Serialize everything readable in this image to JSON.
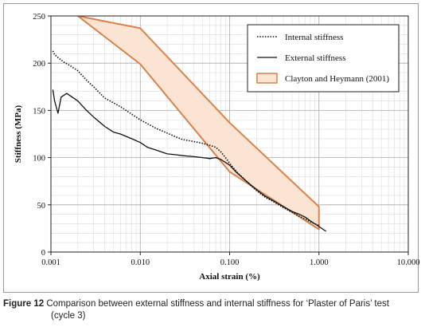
{
  "caption": {
    "label": "Figure 12",
    "text_line1": "Comparison between external stiffness and internal stiffness for ‘Plaster of Paris’ test",
    "text_line2": "(cycle 3)"
  },
  "chart_data": {
    "type": "line",
    "title": "",
    "xlabel": "Axial strain (%)",
    "ylabel": "Stiffness (MPa)",
    "x_scale": "log",
    "xlim": [
      0.001,
      10
    ],
    "ylim": [
      0,
      250
    ],
    "x_ticks": [
      0.001,
      0.01,
      0.1,
      1,
      10
    ],
    "x_tick_labels": [
      "0.001",
      "0.010",
      "0.100",
      "1.000",
      "10.000"
    ],
    "y_ticks": [
      0,
      50,
      100,
      150,
      200,
      250
    ],
    "y_tick_labels": [
      "0",
      "50",
      "100",
      "150",
      "200",
      "250"
    ],
    "grid": true,
    "legend_position": "top-right",
    "series": [
      {
        "name": "Internal stiffness",
        "style": "dotted",
        "color": "#111111",
        "x": [
          0.00105,
          0.0011,
          0.0012,
          0.0014,
          0.0016,
          0.002,
          0.0025,
          0.003,
          0.004,
          0.005,
          0.006,
          0.008,
          0.01,
          0.012,
          0.015,
          0.02,
          0.025,
          0.03,
          0.04,
          0.05,
          0.06,
          0.07,
          0.08,
          0.09,
          0.1,
          0.12,
          0.15,
          0.2,
          0.25,
          0.3,
          0.4,
          0.5,
          0.6,
          0.7,
          0.8,
          0.9,
          1.0
        ],
        "y": [
          213,
          209,
          206,
          201,
          198,
          192,
          182,
          175,
          163,
          158,
          154,
          146,
          140,
          136,
          131,
          126,
          122,
          119,
          117,
          115,
          113,
          111,
          106,
          100,
          94,
          85,
          76,
          65,
          58,
          54,
          47,
          42,
          38,
          35,
          32,
          30,
          28
        ]
      },
      {
        "name": "External stiffness",
        "style": "solid",
        "color": "#111111",
        "x": [
          0.00105,
          0.0011,
          0.0012,
          0.0013,
          0.0015,
          0.002,
          0.0025,
          0.003,
          0.004,
          0.005,
          0.006,
          0.008,
          0.01,
          0.012,
          0.015,
          0.02,
          0.025,
          0.03,
          0.04,
          0.05,
          0.06,
          0.07,
          0.08,
          0.1,
          0.12,
          0.15,
          0.2,
          0.25,
          0.3,
          0.4,
          0.5,
          0.6,
          0.7,
          0.8,
          1.0,
          1.2
        ],
        "y": [
          172,
          160,
          147,
          164,
          168,
          160,
          150,
          143,
          133,
          127,
          125,
          120,
          116,
          111,
          108,
          104,
          103,
          102,
          101,
          100,
          99,
          100,
          98,
          92,
          84,
          76,
          66,
          59,
          55,
          48,
          43,
          40,
          37,
          33,
          27,
          22
        ]
      }
    ],
    "bands": [
      {
        "name": "Clayton and Heymann (2001)",
        "fill": "#fbe4d3",
        "stroke": "#d9824a",
        "upper": {
          "x": [
            0.002,
            0.01,
            0.1,
            1.0,
            1.0
          ],
          "y": [
            250,
            237,
            137,
            48,
            24
          ]
        },
        "lower": {
          "x": [
            0.002,
            0.01,
            0.1,
            1.0
          ],
          "y": [
            250,
            199,
            85,
            24
          ]
        }
      }
    ]
  }
}
